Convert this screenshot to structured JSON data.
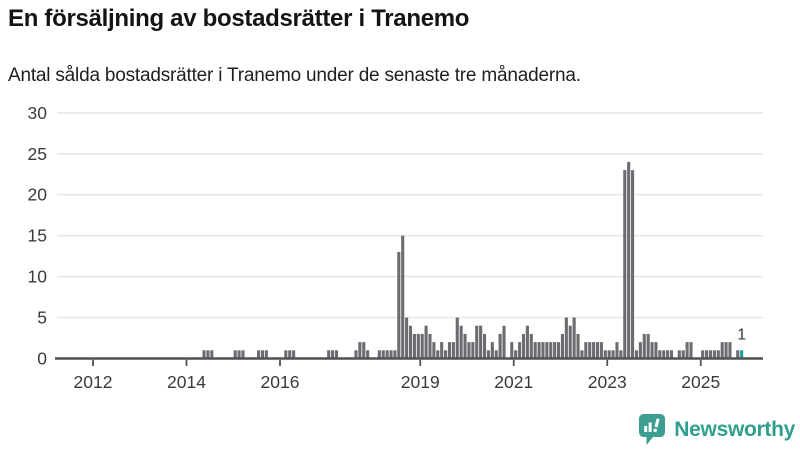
{
  "header": {
    "title": "En försäljning av bostadsrätter i Tranemo",
    "subtitle": "Antal sålda bostadsrätter i Tranemo under de senaste tre månaderna."
  },
  "branding": {
    "name": "Newsworthy",
    "color": "#2f9f8e",
    "icon": "bar-chart-speech-bubble"
  },
  "chart_data": {
    "type": "bar",
    "title": "En försäljning av bostadsrätter i Tranemo",
    "subtitle": "Antal sålda bostadsrätter i Tranemo under de senaste tre månaderna.",
    "xlabel": "",
    "ylabel": "",
    "ylim": [
      0,
      30
    ],
    "yticks": [
      0,
      5,
      10,
      15,
      20,
      25,
      30
    ],
    "xticks": [
      2012,
      2014,
      2016,
      2019,
      2021,
      2023,
      2025
    ],
    "grid": true,
    "legend": null,
    "unit": "månad",
    "start_year": 2011,
    "values_by_year": {
      "2011": [
        0,
        0,
        0,
        0,
        0,
        0,
        0,
        0,
        0,
        0,
        0,
        0
      ],
      "2012": [
        0,
        0,
        0,
        0,
        0,
        0,
        0,
        0,
        0,
        0,
        0,
        0
      ],
      "2013": [
        0,
        0,
        0,
        0,
        0,
        0,
        0,
        0,
        0,
        0,
        0,
        0
      ],
      "2014": [
        0,
        0,
        0,
        0,
        1,
        1,
        1,
        0,
        0,
        0,
        0,
        0
      ],
      "2015": [
        1,
        1,
        1,
        0,
        0,
        0,
        1,
        1,
        1,
        0,
        0,
        0
      ],
      "2016": [
        0,
        1,
        1,
        1,
        0,
        0,
        0,
        0,
        0,
        0,
        0,
        0
      ],
      "2017": [
        1,
        1,
        1,
        0,
        0,
        0,
        0,
        1,
        2,
        2,
        1,
        0
      ],
      "2018": [
        0,
        1,
        1,
        1,
        1,
        1,
        13,
        15,
        5,
        4,
        3,
        3
      ],
      "2019": [
        3,
        4,
        3,
        2,
        1,
        2,
        1,
        2,
        2,
        5,
        4,
        3
      ],
      "2020": [
        2,
        2,
        4,
        4,
        3,
        1,
        2,
        1,
        3,
        4,
        0,
        2
      ],
      "2021": [
        1,
        2,
        3,
        4,
        3,
        2,
        2,
        2,
        2,
        2,
        2,
        2
      ],
      "2022": [
        3,
        5,
        4,
        5,
        3,
        1,
        2,
        2,
        2,
        2,
        2,
        1
      ],
      "2023": [
        1,
        1,
        2,
        1,
        23,
        24,
        23,
        1,
        2,
        3,
        3,
        2
      ],
      "2024": [
        2,
        1,
        1,
        1,
        1,
        0,
        1,
        1,
        2,
        2,
        0,
        0
      ],
      "2025": [
        1,
        1,
        1,
        1,
        1,
        2,
        2,
        2,
        0,
        1,
        1
      ]
    },
    "highlight_last": true,
    "annotation": {
      "text": "1",
      "target": "last-bar"
    },
    "colors": {
      "bar": "#6b6b70",
      "highlight": "#17a29b",
      "axis": "#515156",
      "grid": "#e8e8e8",
      "label": "#3a3a3a",
      "annotation": "#333333"
    }
  }
}
